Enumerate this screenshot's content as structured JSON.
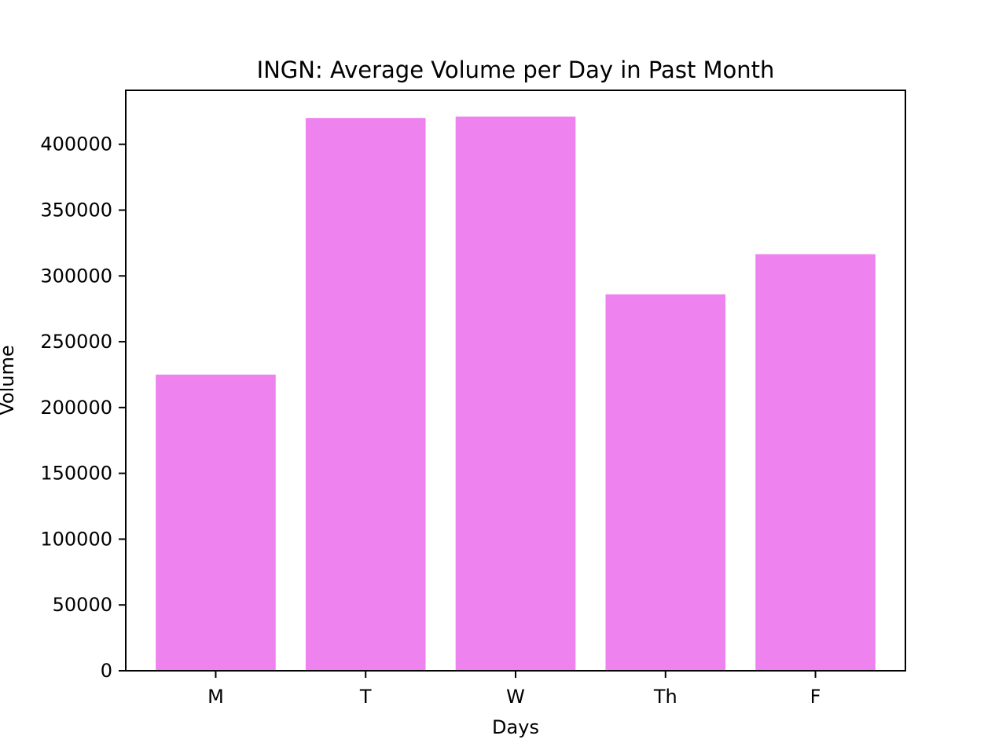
{
  "chart_data": {
    "type": "bar",
    "title": "INGN: Average Volume per Day in Past Month",
    "xlabel": "Days",
    "ylabel": "Volume",
    "categories": [
      "M",
      "T",
      "W",
      "Th",
      "F"
    ],
    "values": [
      225000,
      420000,
      421000,
      286000,
      316500
    ],
    "ylim": [
      0,
      441000
    ],
    "yticks": [
      0,
      50000,
      100000,
      150000,
      200000,
      250000,
      300000,
      350000,
      400000
    ],
    "ytick_labels": [
      "0",
      "50000",
      "100000",
      "150000",
      "200000",
      "250000",
      "300000",
      "350000",
      "400000"
    ],
    "grid": false,
    "legend": "none",
    "colors": {
      "bar": "#ee82ee",
      "axes": "#000000",
      "background": "#ffffff"
    }
  }
}
